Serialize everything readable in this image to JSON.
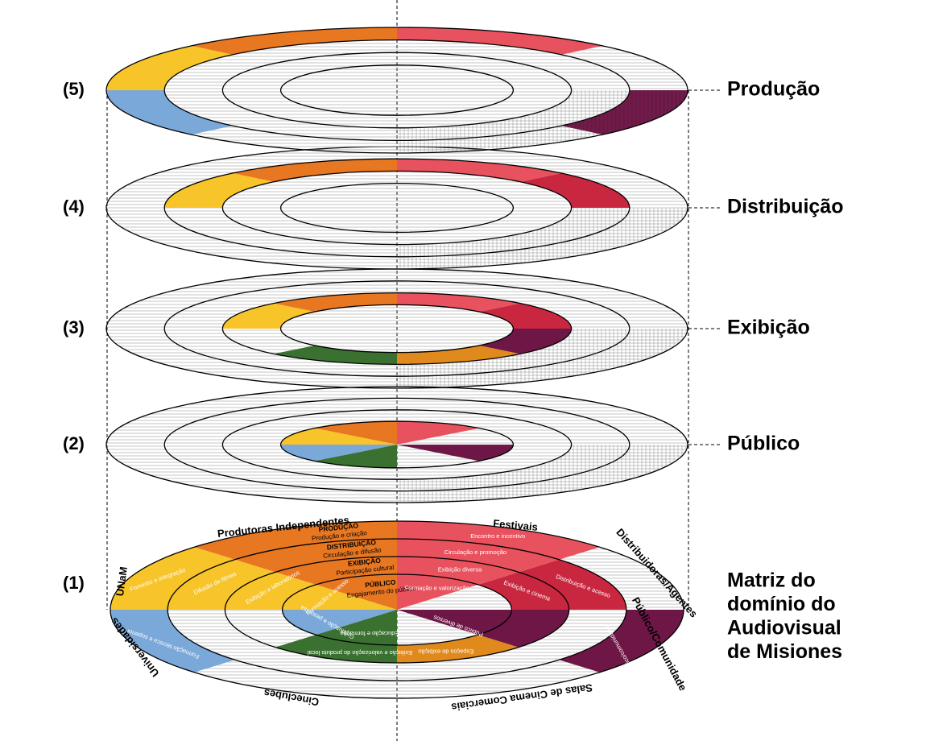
{
  "layers": [
    {
      "number": "(5)",
      "label": "Produção"
    },
    {
      "number": "(4)",
      "label": "Distribuição"
    },
    {
      "number": "(3)",
      "label": "Exibição"
    },
    {
      "number": "(2)",
      "label": "Público"
    }
  ],
  "base": {
    "number": "(1)",
    "title_lines": [
      "Matriz do",
      "domínio do",
      "Audiovisual",
      "de Misiones"
    ],
    "sectors": [
      "Distribuidoras/Agentes",
      "Festivais",
      "Produtoras Independentes",
      "UNaM",
      "Universidades",
      "Cineclubes",
      "Salas de Cinema Comerciais",
      "Público/Comunidade"
    ],
    "rings": [
      {
        "title": "PÚBLICO",
        "subtitle": "Engajamento do público"
      },
      {
        "title": "EXIBIÇÃO",
        "subtitle": "Participação cultural"
      },
      {
        "title": "DISTRIBUIÇÃO",
        "subtitle": "Circulação e difusão"
      },
      {
        "title": "PRODUÇÃO",
        "subtitle": "Produção e criação"
      }
    ],
    "cells": [
      "Encontro e incentivo",
      "Circulação e promoção",
      "Exibição diversa",
      "Formação e valorização",
      "Distribuição e acesso",
      "Exibição e cinema",
      "Fomento e integração",
      "Difusão de filmes",
      "Exibição e laboratórios",
      "Formação e acesso",
      "Formação técnica e superior",
      "Graduação e pesquisa",
      "Exibição e valorização do produto local",
      "Educação e formação",
      "Espaços de exibição",
      "Público de diversos",
      "Público/comunidade"
    ]
  }
}
